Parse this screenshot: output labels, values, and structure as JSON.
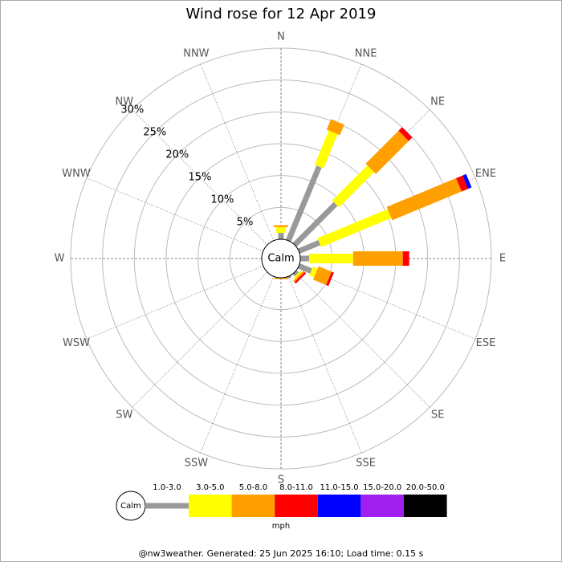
{
  "chart_data": {
    "type": "windrose",
    "title": "Wind rose for 12 Apr 2019",
    "directions": [
      "N",
      "NNE",
      "NE",
      "ENE",
      "E",
      "ESE",
      "SE",
      "SSE",
      "S",
      "SSW",
      "SW",
      "WSW",
      "W",
      "WNW",
      "NW",
      "NNW"
    ],
    "calm_label": "Calm",
    "rlim": [
      0,
      30
    ],
    "rticks": [
      {
        "value": 5,
        "label": "5%"
      },
      {
        "value": 10,
        "label": "10%"
      },
      {
        "value": 15,
        "label": "15%"
      },
      {
        "value": 20,
        "label": "20%"
      },
      {
        "value": 25,
        "label": "25%"
      },
      {
        "value": 30,
        "label": "30%"
      }
    ],
    "series": [
      {
        "name": "1.0-3.0",
        "color": "#999999",
        "values": [
          1.0,
          12.6,
          9.1,
          3.5,
          1.4,
          2.1,
          0.5,
          0.3,
          0,
          0,
          0,
          0,
          0,
          0,
          0,
          0
        ]
      },
      {
        "name": "3.0-5.0",
        "color": "#ffff00",
        "values": [
          0.9,
          5.8,
          7.8,
          11.9,
          6.9,
          0.8,
          0.3,
          0,
          0,
          0,
          0,
          0,
          0,
          0,
          0,
          0
        ]
      },
      {
        "name": "5.0-8.0",
        "color": "#ffa000",
        "values": [
          0.3,
          1.8,
          7.3,
          11.8,
          7.8,
          2.2,
          0.3,
          0,
          0.2,
          0,
          0,
          0,
          0,
          0,
          0,
          0
        ]
      },
      {
        "name": "8.0-11.0",
        "color": "#ff0000",
        "values": [
          0,
          0,
          0.8,
          1.1,
          1.0,
          0.4,
          0.3,
          0,
          0,
          0,
          0,
          0,
          0,
          0,
          0,
          0
        ]
      },
      {
        "name": "11.0-15.0",
        "color": "#0000ff",
        "values": [
          0,
          0,
          0,
          0.6,
          0,
          0,
          0,
          0,
          0,
          0,
          0,
          0,
          0,
          0,
          0,
          0
        ]
      },
      {
        "name": "15.0-20.0",
        "color": "#a020f0",
        "values": [
          0,
          0,
          0,
          0,
          0,
          0,
          0,
          0,
          0,
          0,
          0,
          0,
          0,
          0,
          0,
          0
        ]
      },
      {
        "name": "20.0-50.0",
        "color": "#000000",
        "values": [
          0,
          0,
          0,
          0,
          0,
          0,
          0,
          0,
          0,
          0,
          0,
          0,
          0,
          0,
          0,
          0
        ]
      }
    ],
    "units": "mph",
    "footer": "@nw3weather. Generated: 25 Jun 2025 16:10; Load time: 0.15 s"
  }
}
